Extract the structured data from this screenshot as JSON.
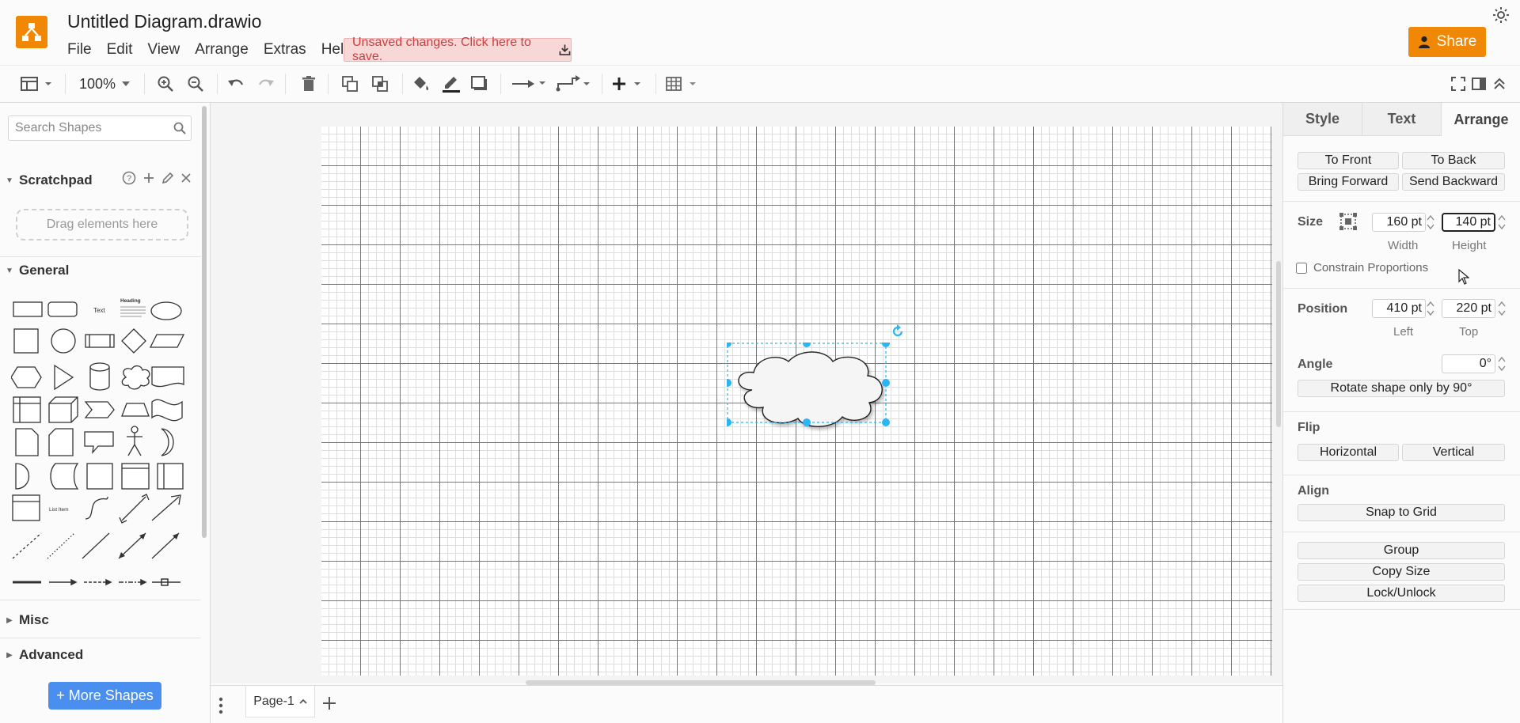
{
  "app": {
    "title": "Untitled Diagram.drawio",
    "menu": [
      "File",
      "Edit",
      "View",
      "Arrange",
      "Extras",
      "Help"
    ],
    "unsaved_notice": "Unsaved changes. Click here to save.",
    "share_label": "Share",
    "accent_color": "#f08705"
  },
  "toolbar": {
    "zoom": "100%",
    "icons": [
      "view-icon",
      "zoom-in-icon",
      "zoom-out-icon",
      "undo-icon",
      "redo-icon",
      "delete-icon",
      "to-front-icon",
      "to-back-icon",
      "fill-color-icon",
      "line-color-icon",
      "shadow-icon",
      "connection-icon",
      "waypoints-icon",
      "insert-icon",
      "table-icon",
      "fullscreen-icon",
      "format-panel-icon",
      "collapse-icon"
    ]
  },
  "sidebar": {
    "search_placeholder": "Search Shapes",
    "scratchpad": {
      "title": "Scratchpad",
      "drop_hint": "Drag elements here"
    },
    "sections": [
      "General",
      "Misc",
      "Advanced"
    ],
    "shape_text_labels": {
      "text": "Text",
      "heading": "Heading",
      "list_item": "List Item"
    },
    "more_shapes_label": "+ More Shapes"
  },
  "pages": {
    "tabs": [
      "Page-1"
    ]
  },
  "format_panel": {
    "tabs": [
      "Style",
      "Text",
      "Arrange"
    ],
    "active_tab": "Arrange",
    "order_buttons": {
      "to_front": "To Front",
      "to_back": "To Back",
      "bring_forward": "Bring Forward",
      "send_backward": "Send Backward"
    },
    "size": {
      "label": "Size",
      "width": "160 pt",
      "height": "140 pt",
      "width_label": "Width",
      "height_label": "Height"
    },
    "constrain_label": "Constrain Proportions",
    "position": {
      "label": "Position",
      "left": "410 pt",
      "top": "220 pt",
      "left_label": "Left",
      "top_label": "Top"
    },
    "angle": {
      "label": "Angle",
      "value": "0°",
      "rotate_label": "Rotate shape only by 90°"
    },
    "flip": {
      "label": "Flip",
      "horizontal": "Horizontal",
      "vertical": "Vertical"
    },
    "align": {
      "label": "Align",
      "snap": "Snap to Grid"
    },
    "actions": {
      "group": "Group",
      "copy_size": "Copy Size",
      "lock": "Lock/Unlock"
    }
  },
  "selection": {
    "shape": "cloud",
    "handle_color": "#29b6f2"
  }
}
